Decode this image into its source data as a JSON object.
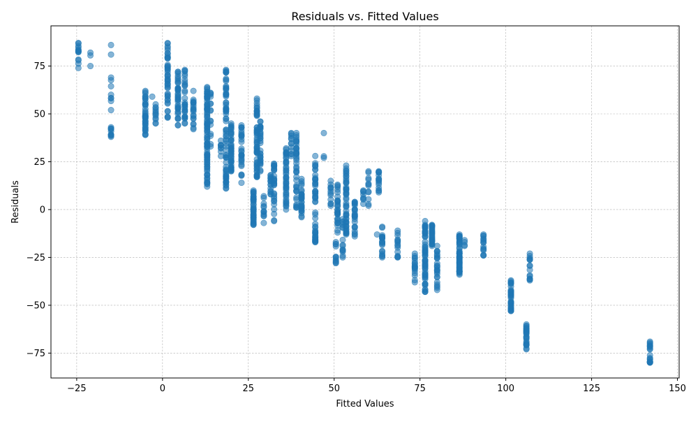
{
  "chart_data": {
    "type": "scatter",
    "title": "Residuals vs. Fitted Values",
    "xlabel": "Fitted Values",
    "ylabel": "Residuals",
    "xlim": [
      -32.5,
      150.5
    ],
    "ylim": [
      -88,
      96
    ],
    "xticks": [
      -25,
      0,
      25,
      50,
      75,
      100,
      125,
      150
    ],
    "yticks": [
      -75,
      -50,
      -25,
      0,
      25,
      50,
      75
    ],
    "xtick_labels": [
      "−25",
      "0",
      "25",
      "50",
      "75",
      "100",
      "125",
      "150"
    ],
    "ytick_labels": [
      "−75",
      "−50",
      "−25",
      "0",
      "25",
      "50",
      "75"
    ],
    "grid": true,
    "marker_color": "#1f77b4",
    "marker_alpha": 0.55,
    "series": [
      {
        "clusters": [
          {
            "x": -24.5,
            "y_min": 74,
            "y_max": 87,
            "n": 14
          },
          {
            "x": -21,
            "y_min": 75,
            "y_max": 82,
            "n": 3
          },
          {
            "x": -15,
            "y_min": 38,
            "y_max": 43,
            "n": 10
          },
          {
            "x": -15,
            "y_min": 52,
            "y_max": 69,
            "n": 8
          },
          {
            "x": -15,
            "y_min": 81,
            "y_max": 86,
            "n": 2
          },
          {
            "x": -5,
            "y_min": 39,
            "y_max": 62,
            "n": 40
          },
          {
            "x": -3,
            "y_min": 59,
            "y_max": 59,
            "n": 1
          },
          {
            "x": -2,
            "y_min": 45,
            "y_max": 55,
            "n": 12
          },
          {
            "x": 1.5,
            "y_min": 48,
            "y_max": 87,
            "n": 45
          },
          {
            "x": 4.5,
            "y_min": 44,
            "y_max": 72,
            "n": 40
          },
          {
            "x": 6.5,
            "y_min": 45,
            "y_max": 73,
            "n": 30
          },
          {
            "x": 9,
            "y_min": 42,
            "y_max": 62,
            "n": 20
          },
          {
            "x": 13,
            "y_min": 12,
            "y_max": 64,
            "n": 90
          },
          {
            "x": 14,
            "y_min": 33,
            "y_max": 61,
            "n": 15
          },
          {
            "x": 17,
            "y_min": 28,
            "y_max": 36,
            "n": 8
          },
          {
            "x": 18.5,
            "y_min": 11,
            "y_max": 73,
            "n": 70
          },
          {
            "x": 20,
            "y_min": 20,
            "y_max": 45,
            "n": 45
          },
          {
            "x": 23,
            "y_min": 14,
            "y_max": 44,
            "n": 30
          },
          {
            "x": 26.5,
            "y_min": -8,
            "y_max": 10,
            "n": 40
          },
          {
            "x": 27.5,
            "y_min": 17,
            "y_max": 58,
            "n": 55
          },
          {
            "x": 28.5,
            "y_min": 20,
            "y_max": 46,
            "n": 30
          },
          {
            "x": 29.5,
            "y_min": -7,
            "y_max": 7,
            "n": 12
          },
          {
            "x": 31.5,
            "y_min": 8,
            "y_max": 18,
            "n": 15
          },
          {
            "x": 32.5,
            "y_min": -6,
            "y_max": 24,
            "n": 30
          },
          {
            "x": 36,
            "y_min": 0,
            "y_max": 32,
            "n": 45
          },
          {
            "x": 37.5,
            "y_min": 28,
            "y_max": 40,
            "n": 12
          },
          {
            "x": 39,
            "y_min": 1,
            "y_max": 40,
            "n": 40
          },
          {
            "x": 40.5,
            "y_min": -4,
            "y_max": 16,
            "n": 30
          },
          {
            "x": 44.5,
            "y_min": -17,
            "y_max": 28,
            "n": 50
          },
          {
            "x": 47,
            "y_min": 27,
            "y_max": 40,
            "n": 3
          },
          {
            "x": 49,
            "y_min": 2,
            "y_max": 15,
            "n": 12
          },
          {
            "x": 50.5,
            "y_min": -28,
            "y_max": -17,
            "n": 12
          },
          {
            "x": 51,
            "y_min": -12,
            "y_max": 13,
            "n": 30
          },
          {
            "x": 52.5,
            "y_min": -25,
            "y_max": -5,
            "n": 15
          },
          {
            "x": 53.5,
            "y_min": -13,
            "y_max": 23,
            "n": 50
          },
          {
            "x": 56,
            "y_min": -14,
            "y_max": 4,
            "n": 25
          },
          {
            "x": 58.5,
            "y_min": 3,
            "y_max": 10,
            "n": 8
          },
          {
            "x": 60,
            "y_min": 2,
            "y_max": 20,
            "n": 12
          },
          {
            "x": 62.5,
            "y_min": -13,
            "y_max": -13,
            "n": 1
          },
          {
            "x": 63,
            "y_min": 9,
            "y_max": 20,
            "n": 15
          },
          {
            "x": 64,
            "y_min": -25,
            "y_max": -9,
            "n": 20
          },
          {
            "x": 68.5,
            "y_min": -25,
            "y_max": -11,
            "n": 15
          },
          {
            "x": 73.5,
            "y_min": -38,
            "y_max": -23,
            "n": 18
          },
          {
            "x": 76.5,
            "y_min": -43,
            "y_max": -6,
            "n": 60
          },
          {
            "x": 78.5,
            "y_min": -19,
            "y_max": -8,
            "n": 30
          },
          {
            "x": 80,
            "y_min": -42,
            "y_max": -19,
            "n": 25
          },
          {
            "x": 86.5,
            "y_min": -34,
            "y_max": -13,
            "n": 55
          },
          {
            "x": 88,
            "y_min": -19,
            "y_max": -16,
            "n": 4
          },
          {
            "x": 93.5,
            "y_min": -24,
            "y_max": -13,
            "n": 15
          },
          {
            "x": 101.5,
            "y_min": -53,
            "y_max": -37,
            "n": 35
          },
          {
            "x": 106,
            "y_min": -73,
            "y_max": -60,
            "n": 25
          },
          {
            "x": 107,
            "y_min": -37,
            "y_max": -23,
            "n": 15
          },
          {
            "x": 142,
            "y_min": -80,
            "y_max": -69,
            "n": 20
          }
        ]
      }
    ]
  }
}
